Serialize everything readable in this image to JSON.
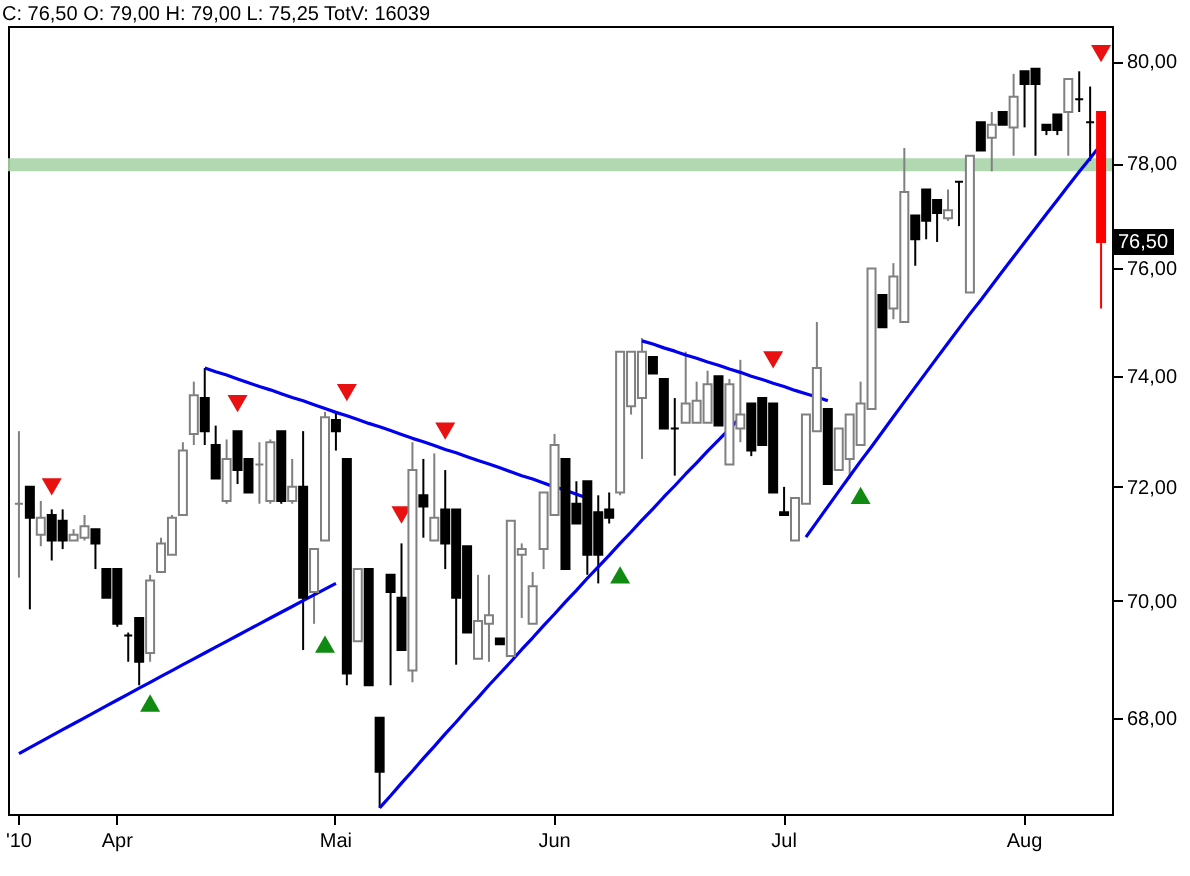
{
  "chart_data": {
    "type": "candlestick",
    "title": "C: 76,50 O: 79,00 H: 79,00 L: 75,25 TotV: 16039",
    "categories": [
      "'10",
      null,
      null,
      null,
      null,
      null,
      null,
      null,
      null,
      "Apr",
      null,
      null,
      null,
      null,
      null,
      null,
      null,
      null,
      null,
      null,
      null,
      null,
      null,
      null,
      null,
      null,
      null,
      null,
      null,
      "Mai",
      null,
      null,
      null,
      null,
      null,
      null,
      null,
      null,
      null,
      null,
      null,
      null,
      null,
      null,
      null,
      null,
      null,
      null,
      null,
      "Jun",
      null,
      null,
      null,
      null,
      null,
      null,
      null,
      null,
      null,
      null,
      null,
      null,
      null,
      null,
      null,
      null,
      null,
      null,
      null,
      null,
      "Jul",
      null,
      null,
      null,
      null,
      null,
      null,
      null,
      null,
      null,
      null,
      null,
      null,
      null,
      null,
      null,
      null,
      null,
      null,
      null,
      null,
      null,
      "Aug",
      null,
      null,
      null,
      null,
      null,
      null,
      null
    ],
    "ohlc": [
      [
        71.7,
        73.0,
        70.4,
        71.7
      ],
      [
        72.0,
        72.0,
        69.85,
        71.45
      ],
      [
        71.15,
        71.75,
        70.95,
        71.45
      ],
      [
        71.5,
        71.6,
        70.7,
        71.05
      ],
      [
        71.4,
        71.6,
        70.9,
        71.05
      ],
      [
        71.05,
        71.25,
        71.05,
        71.15
      ],
      [
        71.1,
        71.5,
        71.05,
        71.3
      ],
      [
        71.25,
        71.25,
        70.55,
        71.0
      ],
      [
        70.55,
        70.55,
        70.05,
        70.05
      ],
      [
        70.55,
        70.55,
        69.55,
        69.6
      ],
      [
        69.4,
        69.45,
        68.95,
        69.4
      ],
      [
        69.7,
        69.7,
        68.55,
        68.95
      ],
      [
        69.1,
        70.45,
        68.95,
        70.35
      ],
      [
        70.5,
        71.1,
        70.5,
        71.0
      ],
      [
        70.8,
        71.5,
        70.8,
        71.45
      ],
      [
        71.5,
        72.8,
        71.5,
        72.65
      ],
      [
        72.95,
        73.9,
        72.75,
        73.65
      ],
      [
        73.6,
        74.15,
        72.75,
        73.0
      ],
      [
        72.75,
        73.1,
        72.15,
        72.15
      ],
      [
        71.75,
        72.85,
        71.7,
        72.5
      ],
      [
        73.0,
        73.0,
        72.05,
        72.3
      ],
      [
        72.5,
        72.5,
        71.9,
        71.9
      ],
      [
        72.4,
        72.8,
        71.7,
        72.4
      ],
      [
        71.75,
        72.85,
        71.7,
        72.8
      ],
      [
        73.0,
        73.0,
        71.7,
        71.75
      ],
      [
        71.75,
        72.5,
        71.7,
        72.0
      ],
      [
        72.0,
        73.0,
        69.15,
        70.05
      ],
      [
        70.15,
        70.9,
        69.6,
        70.9
      ],
      [
        71.05,
        73.35,
        71.05,
        73.25
      ],
      [
        73.2,
        73.35,
        72.65,
        73.0
      ],
      [
        72.5,
        72.5,
        68.55,
        68.75
      ],
      [
        69.3,
        70.55,
        69.3,
        70.55
      ],
      [
        70.55,
        70.55,
        68.55,
        68.55
      ],
      [
        68.0,
        68.0,
        66.5,
        67.1
      ],
      [
        70.45,
        70.45,
        68.55,
        70.15
      ],
      [
        70.05,
        71.0,
        69.15,
        69.15
      ],
      [
        68.8,
        72.8,
        68.6,
        72.3
      ],
      [
        71.85,
        72.5,
        71.1,
        71.65
      ],
      [
        71.05,
        72.6,
        71.05,
        71.45
      ],
      [
        71.6,
        72.3,
        70.55,
        71.0
      ],
      [
        71.6,
        71.6,
        68.9,
        70.05
      ],
      [
        70.95,
        70.95,
        69.45,
        69.45
      ],
      [
        69.0,
        70.45,
        69.0,
        69.65
      ],
      [
        69.6,
        70.45,
        68.95,
        69.75
      ],
      [
        69.35,
        69.35,
        69.25,
        69.25
      ],
      [
        69.05,
        71.4,
        69.05,
        71.4
      ],
      [
        70.8,
        71.0,
        69.7,
        70.9
      ],
      [
        69.6,
        70.5,
        69.6,
        70.25
      ],
      [
        70.9,
        71.9,
        70.55,
        71.9
      ],
      [
        71.5,
        72.95,
        71.5,
        72.75
      ],
      [
        72.5,
        72.5,
        70.55,
        70.55
      ],
      [
        71.7,
        72.1,
        71.35,
        71.35
      ],
      [
        72.1,
        72.1,
        70.45,
        70.8
      ],
      [
        71.55,
        71.85,
        70.3,
        70.8
      ],
      [
        71.6,
        71.9,
        71.35,
        71.45
      ],
      [
        71.9,
        74.45,
        71.85,
        74.45
      ],
      [
        73.45,
        74.45,
        73.3,
        74.45
      ],
      [
        73.6,
        74.7,
        72.5,
        74.45
      ],
      [
        74.35,
        74.35,
        74.05,
        74.05
      ],
      [
        73.95,
        73.95,
        73.05,
        73.05
      ],
      [
        73.05,
        73.6,
        72.2,
        73.05
      ],
      [
        73.15,
        74.45,
        73.15,
        73.5
      ],
      [
        73.15,
        73.9,
        73.15,
        73.55
      ],
      [
        73.15,
        74.1,
        73.15,
        73.85
      ],
      [
        74.0,
        74.0,
        73.1,
        73.1
      ],
      [
        72.4,
        73.95,
        72.4,
        73.85
      ],
      [
        73.05,
        74.3,
        72.8,
        73.3
      ],
      [
        73.5,
        73.5,
        72.55,
        72.65
      ],
      [
        73.6,
        73.6,
        72.75,
        72.75
      ],
      [
        73.5,
        73.5,
        71.9,
        71.9
      ],
      [
        71.55,
        72.0,
        71.5,
        71.5
      ],
      [
        71.05,
        71.8,
        71.05,
        71.8
      ],
      [
        71.7,
        73.3,
        71.7,
        73.3
      ],
      [
        73.0,
        75.0,
        73.0,
        74.15
      ],
      [
        73.4,
        73.4,
        72.05,
        72.05
      ],
      [
        72.3,
        73.05,
        72.3,
        73.05
      ],
      [
        72.5,
        73.3,
        72.15,
        73.3
      ],
      [
        72.75,
        73.9,
        72.75,
        73.5
      ],
      [
        73.4,
        76.0,
        73.4,
        76.0
      ],
      [
        75.5,
        75.5,
        74.9,
        74.9
      ],
      [
        75.25,
        76.1,
        75.05,
        75.85
      ],
      [
        75.0,
        78.3,
        75.0,
        77.45
      ],
      [
        77.0,
        77.0,
        76.05,
        76.55
      ],
      [
        77.5,
        77.5,
        76.55,
        76.9
      ],
      [
        77.3,
        77.3,
        76.5,
        77.05
      ],
      [
        76.95,
        77.5,
        76.9,
        77.1
      ],
      [
        77.65,
        77.65,
        76.8,
        77.65
      ],
      [
        75.55,
        78.15,
        75.55,
        78.15
      ],
      [
        78.8,
        78.8,
        78.25,
        78.25
      ],
      [
        78.5,
        79.0,
        77.85,
        78.75
      ],
      [
        79.0,
        79.0,
        78.75,
        78.75
      ],
      [
        78.7,
        79.75,
        78.15,
        79.3
      ],
      [
        79.8,
        79.8,
        78.7,
        79.55
      ],
      [
        79.85,
        79.85,
        78.15,
        79.55
      ],
      [
        78.75,
        78.75,
        78.55,
        78.65
      ],
      [
        78.95,
        78.95,
        78.55,
        78.65
      ],
      [
        79.0,
        79.65,
        78.15,
        79.65
      ],
      [
        79.25,
        79.8,
        79.0,
        79.25
      ],
      [
        78.8,
        79.5,
        78.05,
        78.8
      ],
      [
        79.0,
        79.0,
        75.25,
        76.5
      ]
    ],
    "colors": [
      "#808080",
      "#000000",
      "#ffffff",
      "#000000",
      "#000000",
      "#ffffff",
      "#ffffff",
      "#000000",
      "#000000",
      "#000000",
      "#000000",
      "#000000",
      "#ffffff",
      "#ffffff",
      "#ffffff",
      "#ffffff",
      "#ffffff",
      "#000000",
      "#000000",
      "#ffffff",
      "#000000",
      "#000000",
      "#808080",
      "#ffffff",
      "#000000",
      "#ffffff",
      "#000000",
      "#ffffff",
      "#ffffff",
      "#000000",
      "#000000",
      "#ffffff",
      "#000000",
      "#000000",
      "#000000",
      "#000000",
      "#ffffff",
      "#000000",
      "#ffffff",
      "#000000",
      "#000000",
      "#000000",
      "#ffffff",
      "#ffffff",
      "#000000",
      "#ffffff",
      "#ffffff",
      "#ffffff",
      "#ffffff",
      "#ffffff",
      "#000000",
      "#000000",
      "#000000",
      "#000000",
      "#000000",
      "#ffffff",
      "#ffffff",
      "#ffffff",
      "#000000",
      "#000000",
      "#000000",
      "#ffffff",
      "#ffffff",
      "#ffffff",
      "#000000",
      "#ffffff",
      "#ffffff",
      "#000000",
      "#000000",
      "#000000",
      "#000000",
      "#ffffff",
      "#ffffff",
      "#ffffff",
      "#000000",
      "#ffffff",
      "#ffffff",
      "#ffffff",
      "#ffffff",
      "#000000",
      "#ffffff",
      "#ffffff",
      "#000000",
      "#000000",
      "#000000",
      "#ffffff",
      "#000000",
      "#ffffff",
      "#000000",
      "#ffffff",
      "#000000",
      "#ffffff",
      "#000000",
      "#000000",
      "#000000",
      "#000000",
      "#ffffff",
      "#000000",
      "#000000",
      "#ff0000"
    ],
    "series": [
      {
        "type": "line",
        "color": "#0000ee",
        "values": [
          67.4,
          67.5,
          67.6,
          67.7,
          67.8,
          67.9,
          68.0,
          68.1,
          68.2,
          68.3,
          68.4,
          68.5,
          68.6,
          68.7,
          68.8,
          68.9,
          69.0,
          69.1,
          69.2,
          69.3,
          69.4,
          69.5,
          69.6,
          69.7,
          69.8,
          69.9,
          70.0,
          70.1,
          70.2,
          70.3,
          null,
          null,
          null,
          null,
          null,
          null,
          null,
          null,
          null,
          null,
          null,
          null,
          null,
          null,
          null,
          null,
          null,
          null,
          null,
          null,
          null,
          null,
          null,
          null,
          null,
          null,
          null,
          null,
          null,
          null,
          null,
          null,
          null,
          null,
          null,
          null,
          null,
          null,
          null,
          null,
          null,
          null,
          null,
          null,
          null,
          null,
          null,
          null,
          null,
          null,
          null,
          null,
          null,
          null,
          null,
          null,
          null,
          null,
          null,
          null,
          null,
          null,
          null,
          null,
          null,
          null,
          null,
          null,
          null,
          null
        ]
      },
      {
        "type": "line",
        "color": "#0000ee",
        "values": [
          null,
          null,
          null,
          null,
          null,
          null,
          null,
          null,
          null,
          null,
          null,
          null,
          null,
          null,
          null,
          null,
          null,
          74.15,
          74.08,
          74.02,
          73.95,
          73.88,
          73.81,
          73.75,
          73.68,
          73.61,
          73.55,
          73.48,
          73.41,
          73.34,
          73.28,
          73.21,
          73.14,
          73.08,
          73.01,
          72.94,
          72.87,
          72.81,
          72.74,
          72.67,
          72.61,
          72.54,
          72.47,
          72.41,
          72.34,
          72.27,
          72.2,
          72.14,
          72.07,
          72.0,
          71.94,
          71.87,
          71.8,
          null,
          null,
          null,
          null,
          null,
          null,
          null,
          null,
          null,
          null,
          null,
          null,
          null,
          null,
          null,
          null,
          null,
          null,
          null,
          null,
          null,
          null,
          null,
          null,
          null,
          null,
          null,
          null,
          null,
          null,
          null,
          null,
          null,
          null,
          null,
          null,
          null,
          null,
          null,
          null,
          null,
          null,
          null,
          null,
          null,
          null,
          null
        ]
      },
      {
        "type": "line",
        "color": "#0000ee",
        "values": [
          null,
          null,
          null,
          null,
          null,
          null,
          null,
          null,
          null,
          null,
          null,
          null,
          null,
          null,
          null,
          null,
          null,
          null,
          null,
          null,
          null,
          null,
          null,
          null,
          null,
          null,
          null,
          null,
          null,
          null,
          null,
          null,
          null,
          66.5,
          66.7,
          66.91,
          67.11,
          67.32,
          67.52,
          67.73,
          67.93,
          68.14,
          68.34,
          68.55,
          68.75,
          68.95,
          69.16,
          69.36,
          69.57,
          69.77,
          69.98,
          70.18,
          70.39,
          70.59,
          70.79,
          71.0,
          71.2,
          71.41,
          71.61,
          71.82,
          72.02,
          72.23,
          72.43,
          72.64,
          72.84,
          73.04,
          73.25,
          null,
          null,
          null,
          null,
          null,
          null,
          null,
          null,
          null,
          null,
          null,
          null,
          null,
          null,
          null,
          null,
          null,
          null,
          null,
          null,
          null,
          null,
          null,
          null,
          null,
          null,
          null,
          null,
          null,
          null,
          null,
          null,
          null
        ]
      },
      {
        "type": "line",
        "color": "#0000ee",
        "values": [
          null,
          null,
          null,
          null,
          null,
          null,
          null,
          null,
          null,
          null,
          null,
          null,
          null,
          null,
          null,
          null,
          null,
          null,
          null,
          null,
          null,
          null,
          null,
          null,
          null,
          null,
          null,
          null,
          null,
          null,
          null,
          null,
          null,
          null,
          null,
          null,
          null,
          null,
          null,
          null,
          null,
          null,
          null,
          null,
          null,
          null,
          null,
          null,
          null,
          null,
          null,
          null,
          null,
          null,
          null,
          null,
          null,
          74.65,
          74.59,
          74.52,
          74.46,
          74.39,
          74.33,
          74.26,
          74.2,
          74.13,
          74.07,
          74.0,
          73.94,
          73.87,
          73.81,
          73.74,
          73.68,
          73.62,
          73.55,
          null,
          null,
          null,
          null,
          null,
          null,
          null,
          null,
          null,
          null,
          null,
          null,
          null,
          null,
          null,
          null,
          null,
          null,
          null,
          null,
          null,
          null,
          null,
          null,
          null
        ]
      },
      {
        "type": "line",
        "color": "#0000ee",
        "values": [
          null,
          null,
          null,
          null,
          null,
          null,
          null,
          null,
          null,
          null,
          null,
          null,
          null,
          null,
          null,
          null,
          null,
          null,
          null,
          null,
          null,
          null,
          null,
          null,
          null,
          null,
          null,
          null,
          null,
          null,
          null,
          null,
          null,
          null,
          null,
          null,
          null,
          null,
          null,
          null,
          null,
          null,
          null,
          null,
          null,
          null,
          null,
          null,
          null,
          null,
          null,
          null,
          null,
          null,
          null,
          null,
          null,
          null,
          null,
          null,
          null,
          null,
          null,
          null,
          null,
          null,
          null,
          null,
          null,
          null,
          null,
          null,
          71.11,
          71.38,
          71.65,
          71.92,
          72.19,
          72.46,
          72.72,
          72.99,
          73.26,
          73.53,
          73.8,
          74.07,
          74.34,
          74.61,
          74.88,
          75.15,
          75.41,
          75.68,
          75.95,
          76.22,
          76.49,
          76.76,
          77.03,
          77.3,
          77.57,
          77.84,
          78.1,
          78.37
        ]
      },
      {
        "type": "scatter",
        "marker": "triangle",
        "color": "#e81010",
        "values": [
          null,
          null,
          null,
          72.0,
          null,
          null,
          null,
          null,
          null,
          null,
          null,
          null,
          null,
          null,
          null,
          null,
          null,
          null,
          null,
          null,
          73.5,
          null,
          null,
          null,
          null,
          null,
          null,
          null,
          null,
          null,
          73.7,
          null,
          null,
          null,
          null,
          71.5,
          null,
          null,
          null,
          73.0,
          null,
          null,
          null,
          null,
          null,
          null,
          null,
          null,
          null,
          null,
          null,
          null,
          null,
          null,
          null,
          null,
          null,
          null,
          null,
          null,
          null,
          null,
          null,
          null,
          null,
          null,
          null,
          null,
          null,
          74.3,
          null,
          null,
          null,
          null,
          null,
          null,
          null,
          null,
          null,
          null,
          null,
          null,
          null,
          null,
          null,
          null,
          null,
          null,
          null,
          null,
          null,
          null,
          null,
          null,
          null,
          null,
          null,
          null,
          null,
          80.15
        ]
      },
      {
        "type": "scatter",
        "marker": "triangle",
        "color": "#108a10",
        "values": [
          null,
          null,
          null,
          null,
          null,
          null,
          null,
          null,
          null,
          null,
          null,
          null,
          68.25,
          null,
          null,
          null,
          null,
          null,
          null,
          null,
          null,
          null,
          null,
          null,
          null,
          null,
          null,
          null,
          69.25,
          null,
          null,
          null,
          null,
          null,
          null,
          null,
          null,
          null,
          null,
          null,
          null,
          null,
          null,
          null,
          null,
          null,
          null,
          null,
          null,
          null,
          null,
          null,
          null,
          null,
          null,
          70.45,
          null,
          null,
          null,
          null,
          null,
          null,
          null,
          null,
          null,
          null,
          null,
          null,
          null,
          null,
          null,
          null,
          null,
          null,
          null,
          null,
          null,
          71.85,
          null,
          null,
          null,
          null,
          null,
          null,
          null,
          null,
          null,
          null,
          null,
          null,
          null,
          null,
          null,
          null,
          null,
          null,
          null,
          null,
          null,
          null
        ]
      }
    ],
    "bands": [
      {
        "axis": "y",
        "from": 77.85,
        "to": 78.1,
        "color": "#a8d4a8"
      }
    ],
    "annotations": [
      "76,50"
    ],
    "log": true,
    "ylim": [
      66.4,
      80.7
    ],
    "yticks": [
      {
        "value": 68,
        "label": "68,00"
      },
      {
        "value": 70,
        "label": "70,00"
      },
      {
        "value": 72,
        "label": "72,00"
      },
      {
        "value": 74,
        "label": "74,00"
      },
      {
        "value": 76,
        "label": "76,00"
      },
      {
        "value": 78,
        "label": "78,00"
      },
      {
        "value": 80,
        "label": "80,00"
      }
    ]
  }
}
